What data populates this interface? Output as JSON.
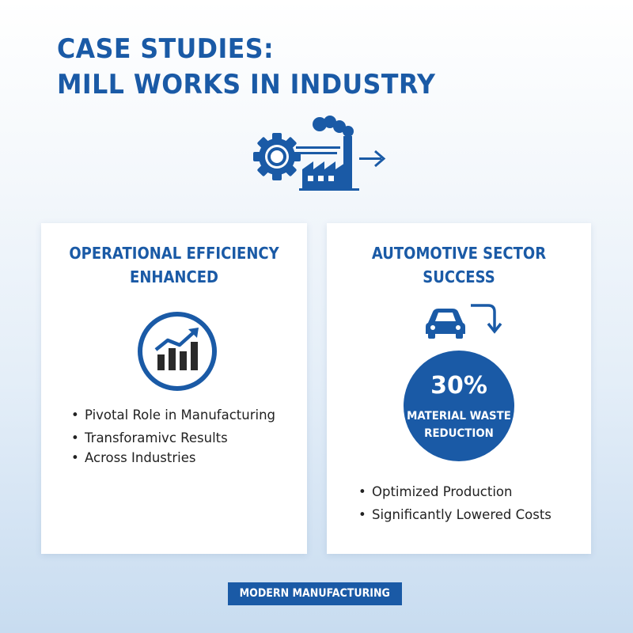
{
  "header": {
    "title_line1": "CASE STUDIES:",
    "title_line2": "MILL WORKS IN INDUSTRY",
    "icon": "gear-factory-arrow-icon"
  },
  "cards": [
    {
      "title_line1": "OPERATIONAL EFFICIENCY",
      "title_line2": "ENHANCED",
      "icon": "growth-chart-icon",
      "bullets": [
        "Pivotal Role in Manufacturing",
        "Transforamivc Results",
        "Across Industries"
      ]
    },
    {
      "title_line1": "AUTOMOTIVE SECTOR",
      "title_line2": "SUCCESS",
      "icon": "car-arrow-icon",
      "stat": {
        "value": "30%",
        "label_line1": "MATERIAL WASTE",
        "label_line2": "REDUCTION"
      },
      "bullets": [
        "Optimized Production",
        "Significantly Lowered Costs"
      ]
    }
  ],
  "footer": {
    "badge": "MODERN MANUFACTURING"
  },
  "colors": {
    "accent": "#1a5aa6",
    "text": "#222222",
    "card": "#ffffff"
  }
}
